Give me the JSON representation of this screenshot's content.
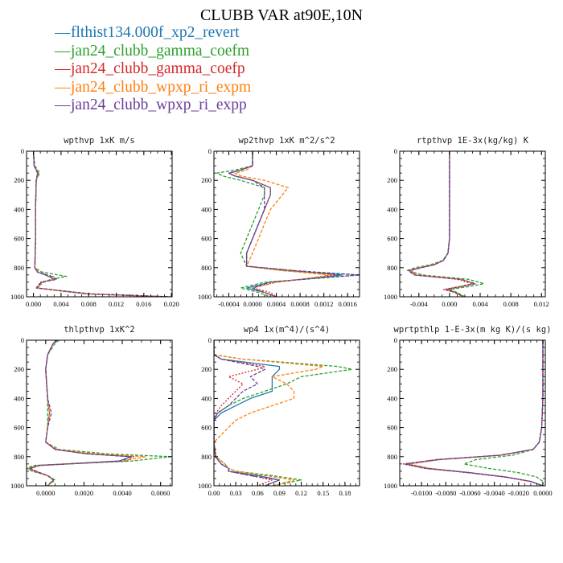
{
  "figure": {
    "title": "CLUBB VAR at90E,10N",
    "legend": [
      {
        "label": "flthist134.000f_xp2_revert",
        "color": "#1f77b4"
      },
      {
        "label": "jan24_clubb_gamma_coefm",
        "color": "#2ca02c"
      },
      {
        "label": "jan24_clubb_gamma_coefp",
        "color": "#d62728"
      },
      {
        "label": "jan24_clubb_wpxp_ri_expm",
        "color": "#ff7f0e"
      },
      {
        "label": "jan24_clubb_wpxp_ri_expp",
        "color": "#6a3d9a"
      }
    ]
  },
  "chart_data": [
    {
      "type": "line",
      "title": "wpthvp  1xK m/s",
      "xlim": [
        -0.001,
        0.0201
      ],
      "ylim": [
        1000,
        0
      ],
      "xticks": [
        0.0,
        0.004,
        0.008,
        0.012,
        0.016,
        0.02
      ],
      "xtick_labels": [
        "0.000",
        "0.004",
        "0.008",
        "0.012",
        "0.016",
        "0.020"
      ],
      "yticks": [
        0,
        200,
        400,
        600,
        800,
        1000
      ],
      "ytick_labels": [
        "0",
        "200",
        "400",
        "600",
        "800",
        "1000"
      ],
      "y": [
        0,
        100,
        150,
        200,
        400,
        600,
        800,
        830,
        860,
        880,
        900,
        940,
        980,
        1000
      ],
      "series": [
        {
          "name": "flthist134.000f_xp2_revert",
          "x": [
            0.0,
            0.0001,
            0.0007,
            0.0004,
            0.0003,
            0.0003,
            0.0002,
            0.0006,
            0.0022,
            0.003,
            0.0012,
            0.0006,
            0.008,
            0.0195
          ]
        },
        {
          "name": "jan24_clubb_gamma_coefm",
          "x": [
            0.0,
            0.0002,
            0.0009,
            0.0004,
            0.0003,
            0.0003,
            0.0002,
            0.0012,
            0.0048,
            0.0025,
            0.0015,
            0.0004,
            0.0085,
            0.0199
          ]
        },
        {
          "name": "jan24_clubb_gamma_coefp",
          "x": [
            0.0,
            0.0001,
            0.0006,
            0.0004,
            0.0003,
            0.0003,
            0.0002,
            0.0005,
            0.0028,
            0.0033,
            0.001,
            0.0004,
            0.0075,
            0.0194
          ]
        },
        {
          "name": "jan24_clubb_wpxp_ri_expm",
          "x": [
            0.0,
            0.0001,
            0.0007,
            0.0004,
            0.0003,
            0.0003,
            0.0002,
            0.0007,
            0.0025,
            0.0029,
            0.0013,
            0.0006,
            0.0078,
            0.0196
          ]
        },
        {
          "name": "jan24_clubb_wpxp_ri_expp",
          "x": [
            0.0,
            0.0001,
            0.0006,
            0.0004,
            0.0003,
            0.0003,
            0.0002,
            0.0006,
            0.0026,
            0.0034,
            0.0011,
            0.0005,
            0.0079,
            0.0197
          ]
        }
      ]
    },
    {
      "type": "line",
      "title": "wp2thvp  1xK m^2/s^2",
      "xlim": [
        -0.00065,
        0.0018
      ],
      "ylim": [
        1000,
        0
      ],
      "xticks": [
        -0.0004,
        0.0,
        0.0004,
        0.0008,
        0.0012,
        0.0016
      ],
      "xtick_labels": [
        "-0.0004",
        "0.0000",
        "0.0004",
        "0.0008",
        "0.0012",
        "0.0016"
      ],
      "yticks": [
        0,
        200,
        400,
        600,
        800,
        1000
      ],
      "ytick_labels": [
        "0",
        "200",
        "400",
        "600",
        "800",
        "1000"
      ],
      "y": [
        0,
        100,
        130,
        150,
        170,
        200,
        250,
        300,
        400,
        500,
        600,
        700,
        790,
        820,
        850,
        870,
        900,
        940,
        970,
        1000
      ],
      "series": [
        {
          "name": "flthist134.000f_xp2_revert",
          "x": [
            0.0,
            0.0,
            -0.0002,
            -0.0004,
            -0.0003,
            0.0,
            0.0003,
            0.0003,
            0.0002,
            0.0001,
            0.0,
            -0.0001,
            -0.0001,
            0.0006,
            0.0015,
            0.0011,
            0.0003,
            -0.0001,
            0.0002,
            0.0004
          ]
        },
        {
          "name": "jan24_clubb_gamma_coefm",
          "x": [
            0.0,
            0.0,
            -0.0003,
            -0.0006,
            -0.0005,
            -0.0002,
            0.0002,
            0.0002,
            0.0001,
            0.0,
            -0.0001,
            -0.0002,
            -0.0001,
            0.0005,
            0.0018,
            0.0012,
            0.0002,
            -0.0002,
            0.0001,
            0.0003
          ]
        },
        {
          "name": "jan24_clubb_gamma_coefp",
          "x": [
            0.0,
            0.0,
            -0.0002,
            -0.0004,
            -0.0003,
            0.0,
            0.0003,
            0.0003,
            0.0002,
            0.0001,
            0.0,
            -0.0001,
            -0.0001,
            0.0007,
            0.0014,
            0.001,
            0.0004,
            0.0,
            0.0003,
            0.0004
          ]
        },
        {
          "name": "jan24_clubb_wpxp_ri_expm",
          "x": [
            0.0,
            0.0,
            -0.0001,
            -0.0003,
            -0.0002,
            0.0002,
            0.0006,
            0.0005,
            0.0003,
            0.0002,
            0.0001,
            0.0,
            -0.0001,
            0.0005,
            0.0013,
            0.001,
            0.0004,
            0.0,
            0.0002,
            0.0004
          ]
        },
        {
          "name": "jan24_clubb_wpxp_ri_expp",
          "x": [
            0.0,
            0.0,
            -0.0002,
            -0.0004,
            -0.0003,
            0.0,
            0.0002,
            0.0002,
            0.0002,
            0.0001,
            0.0,
            -0.0001,
            -0.0001,
            0.0007,
            0.0018,
            0.0011,
            0.0003,
            0.0,
            0.0002,
            0.0004
          ]
        }
      ]
    },
    {
      "type": "line",
      "title": "rtpthvp  1E-3x(kg/kg) K",
      "xlim": [
        -0.0065,
        0.0125
      ],
      "ylim": [
        1000,
        0
      ],
      "xticks": [
        -0.004,
        0.0,
        0.004,
        0.008,
        0.012
      ],
      "xtick_labels": [
        "-0.004",
        "0.000",
        "0.004",
        "0.008",
        "0.012"
      ],
      "yticks": [
        0,
        200,
        400,
        600,
        800,
        1000
      ],
      "ytick_labels": [
        "0",
        "200",
        "400",
        "600",
        "800",
        "1000"
      ],
      "y": [
        0,
        200,
        400,
        600,
        700,
        750,
        780,
        800,
        820,
        850,
        880,
        910,
        930,
        950,
        970,
        1000
      ],
      "series": [
        {
          "name": "flthist134.000f_xp2_revert",
          "x": [
            0.0,
            0.0,
            0.0,
            0.0,
            -0.0002,
            -0.0008,
            -0.002,
            -0.0038,
            -0.0052,
            -0.0045,
            0.0015,
            0.0032,
            0.0015,
            -0.0005,
            0.0008,
            0.0018
          ]
        },
        {
          "name": "jan24_clubb_gamma_coefm",
          "x": [
            0.0,
            0.0,
            0.0,
            0.0,
            -0.0002,
            -0.0009,
            -0.0025,
            -0.0045,
            -0.0055,
            -0.0035,
            0.0025,
            0.0045,
            0.0025,
            0.0,
            0.001,
            0.002
          ]
        },
        {
          "name": "jan24_clubb_gamma_coefp",
          "x": [
            0.0,
            0.0,
            0.0,
            0.0,
            -0.0002,
            -0.0008,
            -0.002,
            -0.0038,
            -0.005,
            -0.0045,
            0.001,
            0.003,
            0.0012,
            -0.0008,
            0.0006,
            0.0018
          ]
        },
        {
          "name": "jan24_clubb_wpxp_ri_expm",
          "x": [
            0.0,
            0.0,
            0.0,
            0.0,
            -0.0002,
            -0.0008,
            -0.0022,
            -0.004,
            -0.0052,
            -0.0042,
            0.0015,
            0.0032,
            0.0014,
            -0.0004,
            0.0008,
            0.0018
          ]
        },
        {
          "name": "jan24_clubb_wpxp_ri_expp",
          "x": [
            0.0,
            0.0,
            0.0,
            0.0,
            -0.0002,
            -0.0008,
            -0.002,
            -0.0036,
            -0.0054,
            -0.0046,
            0.0015,
            0.0034,
            0.0016,
            -0.0004,
            0.0008,
            0.0018
          ]
        }
      ]
    },
    {
      "type": "line",
      "title": "thlpthvp  1xK^2",
      "xlim": [
        -0.001,
        0.0066
      ],
      "ylim": [
        1000,
        0
      ],
      "xticks": [
        0.0,
        0.002,
        0.004,
        0.006
      ],
      "xtick_labels": [
        "0.0000",
        "0.0020",
        "0.0040",
        "0.0060"
      ],
      "yticks": [
        0,
        200,
        400,
        600,
        800,
        1000
      ],
      "ytick_labels": [
        "0",
        "200",
        "400",
        "600",
        "800",
        "1000"
      ],
      "y": [
        0,
        20,
        100,
        200,
        400,
        500,
        600,
        700,
        750,
        780,
        800,
        830,
        860,
        880,
        900,
        930,
        960,
        1000
      ],
      "series": [
        {
          "name": "flthist134.000f_xp2_revert",
          "x": [
            0.0006,
            0.0004,
            0.0001,
            0.0,
            0.0001,
            0.0002,
            0.0001,
            0.0,
            0.0005,
            0.0022,
            0.0045,
            0.0038,
            -0.0004,
            -0.0009,
            -0.0006,
            0.0001,
            0.0004,
            0.0001
          ]
        },
        {
          "name": "jan24_clubb_gamma_coefm",
          "x": [
            0.0007,
            0.0005,
            0.0001,
            0.0,
            0.0001,
            0.0001,
            0.0001,
            0.0,
            0.0007,
            0.0032,
            0.0065,
            0.0045,
            -0.0006,
            -0.001,
            -0.0007,
            0.0001,
            0.0005,
            0.0001
          ]
        },
        {
          "name": "jan24_clubb_gamma_coefp",
          "x": [
            0.0006,
            0.0004,
            0.0001,
            0.0,
            0.0001,
            0.0002,
            0.0001,
            0.0,
            0.0005,
            0.0022,
            0.0046,
            0.0042,
            -0.0003,
            -0.0008,
            -0.0005,
            0.0001,
            0.0004,
            0.0001
          ]
        },
        {
          "name": "jan24_clubb_wpxp_ri_expm",
          "x": [
            0.0006,
            0.0004,
            0.0001,
            0.0,
            0.0001,
            0.0002,
            0.0001,
            0.0,
            0.0006,
            0.0026,
            0.0052,
            0.004,
            -0.0004,
            -0.0009,
            -0.0006,
            0.0001,
            0.0004,
            0.0001
          ]
        },
        {
          "name": "jan24_clubb_wpxp_ri_expp",
          "x": [
            0.0006,
            0.0004,
            0.0001,
            0.0,
            0.0001,
            0.0003,
            0.0001,
            0.0,
            0.0005,
            0.0021,
            0.0044,
            0.004,
            -0.0003,
            -0.0008,
            -0.0005,
            0.0001,
            0.0004,
            0.0001
          ]
        }
      ]
    },
    {
      "type": "line",
      "title": "wp4  1x(m^4)/(s^4)",
      "xlim": [
        0.0,
        0.2
      ],
      "ylim": [
        1000,
        0
      ],
      "xticks": [
        0.0,
        0.03,
        0.06,
        0.09,
        0.12,
        0.15,
        0.18
      ],
      "xtick_labels": [
        "0.00",
        "0.03",
        "0.06",
        "0.09",
        "0.12",
        "0.15",
        "0.18"
      ],
      "yticks": [
        0,
        200,
        400,
        600,
        800,
        1000
      ],
      "ytick_labels": [
        "0",
        "200",
        "400",
        "600",
        "800",
        "1000"
      ],
      "y": [
        0,
        100,
        130,
        180,
        200,
        250,
        300,
        350,
        400,
        450,
        500,
        550,
        600,
        700,
        800,
        850,
        880,
        900,
        930,
        960,
        1000
      ],
      "series": [
        {
          "name": "flthist134.000f_xp2_revert",
          "x": [
            0.0,
            0.0,
            0.01,
            0.09,
            0.09,
            0.08,
            0.08,
            0.08,
            0.05,
            0.03,
            0.01,
            0.0,
            0.0,
            0.0,
            0.002,
            0.01,
            0.02,
            0.02,
            0.06,
            0.09,
            0.07
          ]
        },
        {
          "name": "jan24_clubb_gamma_coefm",
          "x": [
            0.0,
            0.0,
            0.04,
            0.17,
            0.19,
            0.12,
            0.1,
            0.07,
            0.04,
            0.02,
            0.005,
            0.0,
            0.0,
            0.0,
            0.003,
            0.015,
            0.02,
            0.03,
            0.08,
            0.12,
            0.08
          ]
        },
        {
          "name": "jan24_clubb_gamma_coefp",
          "x": [
            0.0,
            0.0,
            0.01,
            0.07,
            0.06,
            0.02,
            0.04,
            0.03,
            0.02,
            0.01,
            0.003,
            0.0,
            0.0,
            0.0,
            0.002,
            0.01,
            0.02,
            0.02,
            0.05,
            0.08,
            0.06
          ]
        },
        {
          "name": "jan24_clubb_wpxp_ri_expm",
          "x": [
            0.0,
            0.0,
            0.04,
            0.15,
            0.14,
            0.08,
            0.1,
            0.11,
            0.11,
            0.08,
            0.05,
            0.03,
            0.02,
            0.0,
            0.003,
            0.015,
            0.02,
            0.03,
            0.07,
            0.11,
            0.08
          ]
        },
        {
          "name": "jan24_clubb_wpxp_ri_expp",
          "x": [
            0.0,
            0.0,
            0.01,
            0.06,
            0.07,
            0.05,
            0.06,
            0.04,
            0.03,
            0.02,
            0.005,
            0.0,
            0.0,
            0.0,
            0.002,
            0.01,
            0.02,
            0.02,
            0.05,
            0.09,
            0.07
          ]
        }
      ]
    },
    {
      "type": "line",
      "title": "wprtpthlp  1-E-3x(m kg K)/(s kg)",
      "xlim": [
        -0.0118,
        0.0002
      ],
      "ylim": [
        1000,
        0
      ],
      "xticks": [
        -0.01,
        -0.008,
        -0.006,
        -0.004,
        -0.002,
        0.0
      ],
      "xtick_labels": [
        "-0.0100",
        "-0.0080",
        "-0.0060",
        "-0.0040",
        "-0.0020",
        "0.0000"
      ],
      "yticks": [
        0,
        200,
        400,
        600,
        800,
        1000
      ],
      "ytick_labels": [
        "0",
        "200",
        "400",
        "600",
        "800",
        "1000"
      ],
      "y": [
        0,
        200,
        400,
        600,
        700,
        750,
        790,
        820,
        850,
        880,
        910,
        940,
        970,
        1000
      ],
      "series": [
        {
          "name": "flthist134.000f_xp2_revert",
          "x": [
            0.0,
            0.0,
            0.0,
            -0.0001,
            -0.0003,
            -0.0008,
            -0.0035,
            -0.0085,
            -0.0112,
            -0.0095,
            -0.006,
            -0.003,
            -0.001,
            0.0
          ]
        },
        {
          "name": "jan24_clubb_gamma_coefm",
          "x": [
            0.0,
            0.0,
            0.0,
            -0.0001,
            -0.0003,
            -0.0008,
            -0.0025,
            -0.0055,
            -0.0065,
            -0.0045,
            -0.002,
            -0.0005,
            0.0,
            0.0
          ]
        },
        {
          "name": "jan24_clubb_gamma_coefp",
          "x": [
            0.0,
            0.0,
            0.0,
            -0.0001,
            -0.0003,
            -0.0008,
            -0.0035,
            -0.0088,
            -0.0115,
            -0.0098,
            -0.0062,
            -0.0032,
            -0.001,
            0.0
          ]
        },
        {
          "name": "jan24_clubb_wpxp_ri_expm",
          "x": [
            0.0,
            0.0,
            0.0,
            -0.0001,
            -0.0003,
            -0.0008,
            -0.0034,
            -0.0084,
            -0.011,
            -0.0093,
            -0.006,
            -0.003,
            -0.001,
            0.0
          ]
        },
        {
          "name": "jan24_clubb_wpxp_ri_expp",
          "x": [
            0.0,
            0.0,
            0.0,
            -0.0001,
            -0.0003,
            -0.0008,
            -0.0036,
            -0.0087,
            -0.0114,
            -0.0097,
            -0.0061,
            -0.0031,
            -0.001,
            0.0
          ]
        }
      ]
    }
  ]
}
